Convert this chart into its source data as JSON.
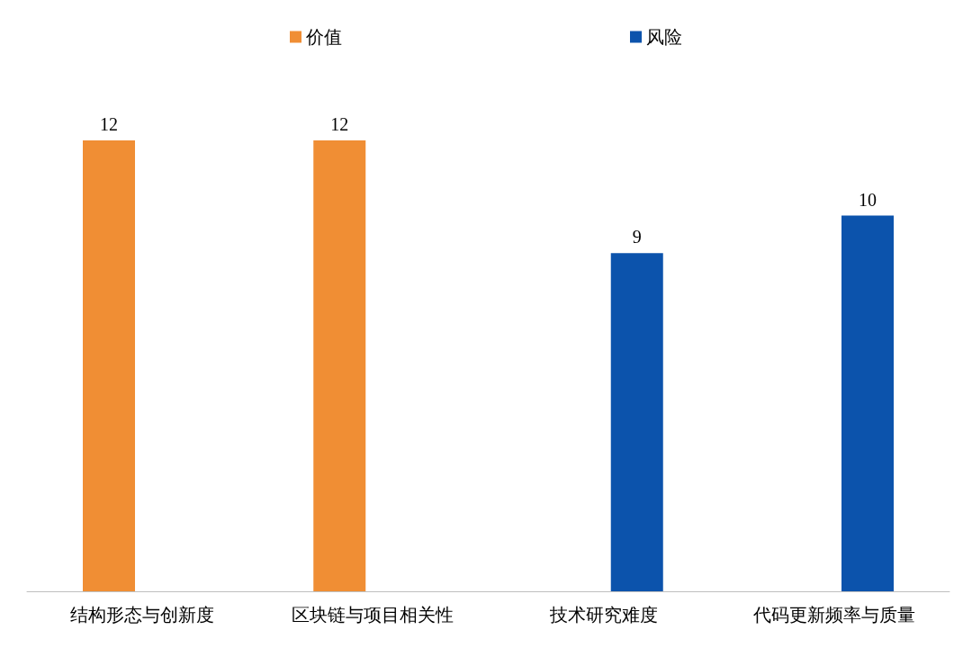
{
  "chart_data": {
    "type": "bar",
    "categories": [
      "结构形态与创新度",
      "区块链与项目相关性",
      "技术研究难度",
      "代码更新频率与质量"
    ],
    "series": [
      {
        "name": "价值",
        "color": "#f08e34",
        "values": [
          12,
          12,
          null,
          null
        ]
      },
      {
        "name": "风险",
        "color": "#0c53ac",
        "values": [
          null,
          null,
          9,
          10
        ]
      }
    ],
    "data_labels": true,
    "legend": "top",
    "tick_labels": "x"
  }
}
